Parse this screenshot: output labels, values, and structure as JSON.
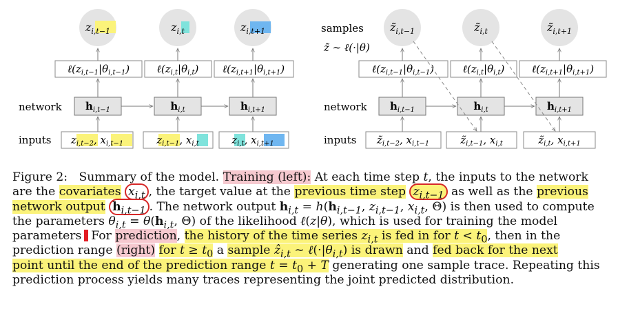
{
  "left": {
    "outputs": [
      "z_{i,t-1}",
      "z_{i,t}",
      "z_{i,t+1}"
    ],
    "likelihoods": [
      "ℓ(z_{i,t−1}|θ_{i,t−1})",
      "ℓ(z_{i,t}|θ_{i,t})",
      "ℓ(z_{i,t+1}|θ_{i,t+1})"
    ],
    "network_label": "network",
    "inputs_label": "inputs",
    "hidden": [
      "h_{i,t−1}",
      "h_{i,t}",
      "h_{i,t+1}"
    ],
    "inputs": [
      "z_{i,t−2}, x_{i,t−1}",
      "z_{i,t−1}, x_{i,t}",
      "z_{i,t}, x_{i,t+1}"
    ]
  },
  "right": {
    "samples_label": "samples",
    "sampling_rule": "z̃ ∼ ℓ(·|θ)",
    "outputs": [
      "z̃_{i,t−1}",
      "z̃_{i,t}",
      "z̃_{i,t+1}"
    ],
    "likelihoods": [
      "ℓ(z_{i,t−1}|θ_{i,t−1})",
      "ℓ(z_{i,t}|θ_{i,t})",
      "ℓ(z_{i,t+1}|θ_{i,t+1})"
    ],
    "network_label": "network",
    "inputs_label": "inputs",
    "hidden": [
      "h_{i,t−1}",
      "h_{i,t}",
      "h_{i,t+1}"
    ],
    "inputs": [
      "z̃_{i,t−2}, x_{i,t−1}",
      "z̃_{i,t−1}, x_{i,t}",
      "z̃_{i,t}, x_{i,t+1}"
    ]
  },
  "caption": {
    "figure_label": "Figure 2:",
    "lines": [
      "Summary of the model. Training (left): At each time step t, the inputs to the network",
      "are the covariates x_{i,t}, the target value at the previous time step z_{i,t−1} as well as the previous",
      "network output h_{i,t−1}. The network output h_{i,t} = h(h_{i,t−1}, z_{i,t−1}, x_{i,t}, Θ) is then used to compute",
      "the parameters θ_{i,t} = θ(h_{i,t}, Θ) of the likelihood ℓ(z|θ), which is used for training the model",
      "parameters. For prediction, the history of the time series z_{i,t} is fed in for t < t_0, then in the",
      "prediction range (right) for t ≥ t_0 a sample ẑ_{i,t} ∼ ℓ(·|θ_{i,t}) is drawn and fed back for the next",
      "point until the end of the prediction range t = t_0 + T generating one sample trace. Repeating this",
      "prediction process yields many traces representing the joint predicted distribution."
    ]
  },
  "colors": {
    "yellow_highlight": "#fbf37a",
    "pink_highlight": "#f6c9cf",
    "cyan_highlight": "#7fe3dc",
    "blue_highlight": "#6fb6f0",
    "red_annotation": "#d62828",
    "node_fill": "#e4e4e4"
  }
}
